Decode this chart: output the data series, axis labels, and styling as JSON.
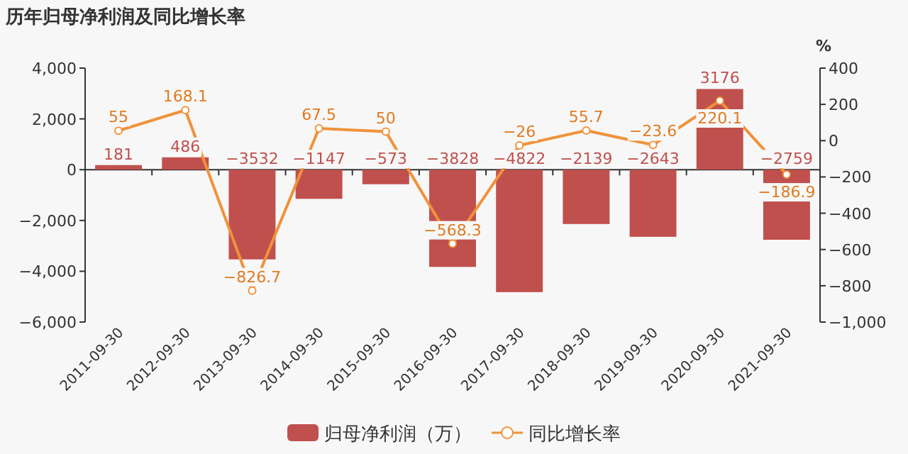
{
  "chart_data": {
    "type": "bar",
    "title": "历年归母净利润及同比增长率",
    "categories": [
      "2011-09-30",
      "2012-09-30",
      "2013-09-30",
      "2014-09-30",
      "2015-09-30",
      "2016-09-30",
      "2017-09-30",
      "2018-09-30",
      "2019-09-30",
      "2020-09-30",
      "2021-09-30"
    ],
    "series": [
      {
        "name": "归母净利润（万）",
        "color": "#c0504d",
        "values": [
          181,
          486,
          -3532,
          -1147,
          -573,
          -3828,
          -4822,
          -2139,
          -2643,
          3176,
          -2759
        ]
      },
      {
        "name": "同比增长率",
        "type": "line",
        "axis": "y2",
        "color": "#f0923a",
        "marker": "circle",
        "values": [
          55,
          168.1,
          -826.7,
          67.5,
          50,
          -568.3,
          -26,
          55.7,
          -23.6,
          220.1,
          -186.9
        ]
      }
    ],
    "ylim": [
      -6000,
      4000
    ],
    "yticks": [
      {
        "value": -6000,
        "label": "−6,000"
      },
      {
        "value": -4000,
        "label": "−4,000"
      },
      {
        "value": -2000,
        "label": "−2,000"
      },
      0,
      {
        "value": 2000,
        "label": "2,000"
      },
      {
        "value": 4000,
        "label": "4,000"
      }
    ],
    "y2lim": [
      -1000,
      400
    ],
    "y2ticks": [
      {
        "value": -1000,
        "label": "−1,000"
      },
      {
        "value": -800,
        "label": "−800"
      },
      {
        "value": -600,
        "label": "−600"
      },
      {
        "value": -400,
        "label": "−400"
      },
      {
        "value": -200,
        "label": "−200"
      },
      0,
      200,
      400
    ],
    "y2label": "%",
    "data_labels": true,
    "legend": "bottom"
  }
}
